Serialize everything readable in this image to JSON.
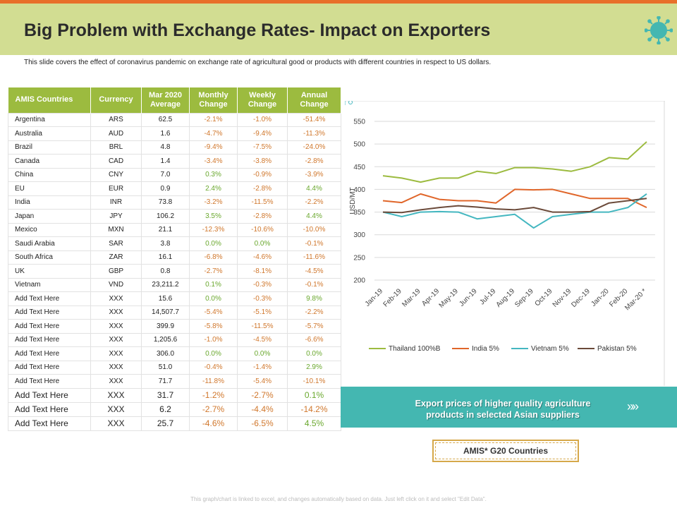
{
  "title": "Big Problem with Exchange Rates- Impact on Exporters",
  "subtitle": "This slide covers the effect of coronavirus pandemic on exchange rate of agricultural good or products with different countries in respect to US dollars.",
  "colors": {
    "accent_orange": "#e8702a",
    "header_green": "#d2dd92",
    "table_header": "#9cbb3f",
    "banner_teal": "#44b7b1"
  },
  "table": {
    "headers": [
      "AMIS Countries",
      "Currency",
      "Mar 2020 Average",
      "Monthly Change",
      "Weekly Change",
      "Annual Change"
    ],
    "rows": [
      [
        "Argentina",
        "ARS",
        "62.5",
        "-2.1%",
        "-1.0%",
        "-51.4%"
      ],
      [
        "Australia",
        "AUD",
        "1.6",
        "-4.7%",
        "-9.4%",
        "-11.3%"
      ],
      [
        "Brazil",
        "BRL",
        "4.8",
        "-9.4%",
        "-7.5%",
        "-24.0%"
      ],
      [
        "Canada",
        "CAD",
        "1.4",
        "-3.4%",
        "-3.8%",
        "-2.8%"
      ],
      [
        "China",
        "CNY",
        "7.0",
        "0.3%",
        "-0.9%",
        "-3.9%"
      ],
      [
        "EU",
        "EUR",
        "0.9",
        "2.4%",
        "-2.8%",
        "4.4%"
      ],
      [
        "India",
        "INR",
        "73.8",
        "-3.2%",
        "-11.5%",
        "-2.2%"
      ],
      [
        "Japan",
        "JPY",
        "106.2",
        "3.5%",
        "-2.8%",
        "4.4%"
      ],
      [
        "Mexico",
        "MXN",
        "21.1",
        "-12.3%",
        "-10.6%",
        "-10.0%"
      ],
      [
        "Saudi Arabia",
        "SAR",
        "3.8",
        "0.0%",
        "0.0%",
        "-0.1%"
      ],
      [
        "South Africa",
        "ZAR",
        "16.1",
        "-6.8%",
        "-4.6%",
        "-11.6%"
      ],
      [
        "UK",
        "GBP",
        "0.8",
        "-2.7%",
        "-8.1%",
        "-4.5%"
      ],
      [
        "Vietnam",
        "VND",
        "23,211.2",
        "0.1%",
        "-0.3%",
        "-0.1%"
      ],
      [
        "Add Text Here",
        "XXX",
        "15.6",
        "0.0%",
        "-0.3%",
        "9.8%"
      ],
      [
        "Add Text Here",
        "XXX",
        "14,507.7",
        "-5.4%",
        "-5.1%",
        "-2.2%"
      ],
      [
        "Add Text Here",
        "XXX",
        "399.9",
        "-5.8%",
        "-11.5%",
        "-5.7%"
      ],
      [
        "Add Text Here",
        "XXX",
        "1,205.6",
        "-1.0%",
        "-4.5%",
        "-6.6%"
      ],
      [
        "Add Text Here",
        "XXX",
        "306.0",
        "0.0%",
        "0.0%",
        "0.0%"
      ],
      [
        "Add Text Here",
        "XXX",
        "51.0",
        "-0.4%",
        "-1.4%",
        "2.9%"
      ],
      [
        "Add Text Here",
        "XXX",
        "71.7",
        "-11.8%",
        "-5.4%",
        "-10.1%"
      ],
      [
        "Add Text Here",
        "XXX",
        "31.7",
        "-1.2%",
        "-2.7%",
        "0.1%"
      ],
      [
        "Add Text Here",
        "XXX",
        "6.2",
        "-2.7%",
        "-4.4%",
        "-14.2%"
      ],
      [
        "Add Text Here",
        "XXX",
        "25.7",
        "-4.6%",
        "-6.5%",
        "4.5%"
      ]
    ]
  },
  "chart_data": {
    "type": "line",
    "ylabel": "USD/MT",
    "ylim": [
      200,
      550
    ],
    "yticks": [
      200,
      250,
      300,
      350,
      400,
      450,
      500,
      550
    ],
    "categories": [
      "Jan-19",
      "Feb-19",
      "Mar-19",
      "Apr-19",
      "May-19",
      "Jun-19",
      "Jul-19",
      "Aug-19",
      "Sep-19",
      "Oct-19",
      "Nov-19",
      "Dec-19",
      "Jan-20",
      "Feb-20",
      "Mar-20 *"
    ],
    "legend_position": "bottom",
    "series": [
      {
        "name": "Thailand 100%B",
        "color": "#9cbb3f",
        "values": [
          430,
          425,
          416,
          425,
          425,
          440,
          435,
          448,
          448,
          445,
          440,
          450,
          470,
          467,
          505
        ]
      },
      {
        "name": "India 5%",
        "color": "#e0662a",
        "values": [
          375,
          371,
          390,
          378,
          375,
          375,
          370,
          400,
          399,
          400,
          390,
          380,
          380,
          380,
          360
        ]
      },
      {
        "name": "Vietnam 5%",
        "color": "#44b7c0",
        "values": [
          350,
          340,
          350,
          351,
          350,
          335,
          340,
          345,
          315,
          340,
          345,
          350,
          350,
          360,
          390
        ]
      },
      {
        "name": "Pakistan 5%",
        "color": "#6b4a3a",
        "values": [
          350,
          349,
          355,
          360,
          364,
          361,
          357,
          355,
          360,
          350,
          350,
          351,
          370,
          375,
          380
        ]
      }
    ]
  },
  "banner": {
    "line1": "Export prices of higher quality agriculture",
    "line2": "products in selected Asian suppliers",
    "arrow": "»»"
  },
  "amis_box": "AMIS* G20 Countries",
  "footer": "This graph/chart is linked to excel, and changes automatically based on data. Just left click on it and select \"Edit Data\"."
}
